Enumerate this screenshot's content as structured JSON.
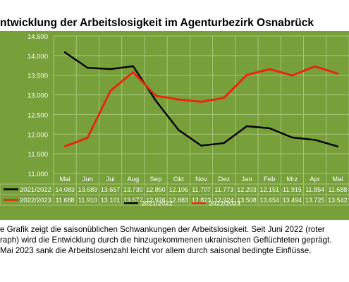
{
  "page_title": "ntwicklung der Arbeitslosigkeit im Agenturbezirk Osnabrück",
  "caption": [
    "e Grafik zeigt die saisonüblichen Schwankungen der Arbeitslosigkeit. Seit Juni 2022 (roter",
    "raph) wird die Entwicklung durch die hinzugekommenen ukrainischen Geflüchteten geprägt.",
    " Mai 2023 sank die Arbeitslosenzahl leicht vor allem durch saisonal bedingte Einflüsse."
  ],
  "colors": {
    "plot_background": "#77a03a",
    "series_2021": "#000000",
    "series_2022": "#e8280c",
    "grid": "#a7c67a",
    "text": "#ffffff"
  },
  "chart_data": {
    "type": "line",
    "categories": [
      "Mai",
      "Jun",
      "Jul",
      "Aug",
      "Sep",
      "Okt",
      "Nov",
      "Dez",
      "Jan",
      "Feb",
      "Mrz",
      "Apr",
      "Mai"
    ],
    "series": [
      {
        "name": "2021/2022",
        "values": [
          14083,
          13689,
          13657,
          13730,
          12850,
          12106,
          11707,
          11773,
          12203,
          12151,
          11915,
          11854,
          11688
        ],
        "labels": [
          "14.083",
          "13.689",
          "13.657",
          "13.730",
          "12.850",
          "12.106",
          "11.707",
          "11.773",
          "12.203",
          "12.151",
          "11.915",
          "11.854",
          "11.688"
        ]
      },
      {
        "name": "2022/2023",
        "values": [
          11688,
          11910,
          13101,
          13577,
          12976,
          12883,
          12823,
          12924,
          13508,
          13654,
          13494,
          13725,
          13542
        ],
        "labels": [
          "11.688",
          "11.910",
          "13.101",
          "13.577",
          "12.976",
          "12.883",
          "12.823",
          "12.924",
          "13.508",
          "13.654",
          "13.494",
          "13.725",
          "13.542"
        ]
      }
    ],
    "ylim": [
      11000,
      14500
    ],
    "yticks": [
      11000,
      11500,
      12000,
      12500,
      13000,
      13500,
      14000,
      14500
    ],
    "ytick_labels": [
      "11.000",
      "11.500",
      "12.000",
      "12.500",
      "13.000",
      "13.500",
      "14.000",
      "14.500"
    ],
    "grid": true,
    "data_table": true,
    "legend_position": "bottom"
  }
}
